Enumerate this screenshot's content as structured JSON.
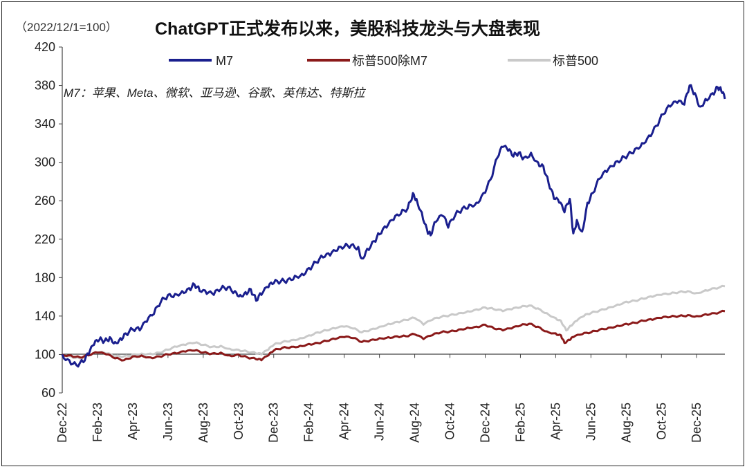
{
  "chart_data": {
    "type": "line",
    "base_note": "（2022/12/1=100）",
    "title": "ChatGPT正式发布以来，美股科技龙头与大盘表现",
    "annotation": "M7：苹果、Meta、微软、亚马逊、谷歌、英伟达、特斯拉",
    "ylim": [
      60,
      420
    ],
    "yticks": [
      "420",
      "380",
      "340",
      "300",
      "260",
      "220",
      "180",
      "140",
      "100",
      "60"
    ],
    "xlabels": [
      "Dec-22",
      "Feb-23",
      "Apr-23",
      "Jun-23",
      "Aug-23",
      "Oct-23",
      "Dec-23",
      "Feb-24",
      "Apr-24",
      "Jun-24",
      "Aug-24",
      "Oct-24",
      "Dec-24",
      "Feb-25",
      "Apr-25",
      "Jun-25",
      "Aug-25",
      "Oct-25",
      "Dec-25"
    ],
    "x_months": [
      0,
      2,
      4,
      6,
      8,
      10,
      12,
      14,
      16,
      18,
      20,
      22,
      24,
      26,
      28,
      30,
      32,
      34,
      36
    ],
    "xlim_months": [
      0,
      37.6
    ],
    "series": [
      {
        "name": "M7",
        "color": "#1a1f8e",
        "points": [
          [
            0,
            100
          ],
          [
            0.4,
            94
          ],
          [
            0.8,
            89
          ],
          [
            1.2,
            92
          ],
          [
            1.5,
            100
          ],
          [
            1.8,
            110
          ],
          [
            2.1,
            115
          ],
          [
            2.4,
            114
          ],
          [
            2.7,
            118
          ],
          [
            3.0,
            113
          ],
          [
            3.3,
            117
          ],
          [
            3.6,
            122
          ],
          [
            4.0,
            126
          ],
          [
            4.4,
            125
          ],
          [
            4.8,
            134
          ],
          [
            5.2,
            142
          ],
          [
            5.6,
            155
          ],
          [
            6.0,
            162
          ],
          [
            6.4,
            163
          ],
          [
            6.8,
            166
          ],
          [
            7.2,
            169
          ],
          [
            7.5,
            173
          ],
          [
            7.8,
            166
          ],
          [
            8.2,
            163
          ],
          [
            8.6,
            162
          ],
          [
            9.0,
            168
          ],
          [
            9.4,
            170
          ],
          [
            9.8,
            166
          ],
          [
            10.1,
            162
          ],
          [
            10.4,
            165
          ],
          [
            10.7,
            168
          ],
          [
            11.0,
            156
          ],
          [
            11.3,
            162
          ],
          [
            11.7,
            170
          ],
          [
            12.0,
            174
          ],
          [
            12.4,
            176
          ],
          [
            12.8,
            178
          ],
          [
            13.2,
            182
          ],
          [
            13.6,
            184
          ],
          [
            14.0,
            190
          ],
          [
            14.4,
            196
          ],
          [
            14.8,
            201
          ],
          [
            15.2,
            203
          ],
          [
            15.6,
            208
          ],
          [
            16.0,
            212
          ],
          [
            16.4,
            214
          ],
          [
            16.8,
            212
          ],
          [
            17.0,
            200
          ],
          [
            17.3,
            210
          ],
          [
            17.7,
            218
          ],
          [
            18.0,
            225
          ],
          [
            18.4,
            232
          ],
          [
            18.8,
            240
          ],
          [
            19.2,
            246
          ],
          [
            19.6,
            252
          ],
          [
            19.9,
            268
          ],
          [
            20.1,
            262
          ],
          [
            20.4,
            248
          ],
          [
            20.7,
            230
          ],
          [
            20.9,
            224
          ],
          [
            21.2,
            238
          ],
          [
            21.6,
            244
          ],
          [
            21.9,
            232
          ],
          [
            22.3,
            245
          ],
          [
            22.7,
            252
          ],
          [
            23.1,
            256
          ],
          [
            23.5,
            258
          ],
          [
            23.9,
            268
          ],
          [
            24.3,
            282
          ],
          [
            24.7,
            305
          ],
          [
            25.0,
            316
          ],
          [
            25.3,
            312
          ],
          [
            25.6,
            306
          ],
          [
            25.9,
            310
          ],
          [
            26.2,
            305
          ],
          [
            26.6,
            310
          ],
          [
            27.0,
            300
          ],
          [
            27.3,
            296
          ],
          [
            27.6,
            278
          ],
          [
            27.9,
            262
          ],
          [
            28.2,
            258
          ],
          [
            28.5,
            248
          ],
          [
            28.8,
            262
          ],
          [
            29.0,
            226
          ],
          [
            29.2,
            240
          ],
          [
            29.5,
            228
          ],
          [
            29.8,
            258
          ],
          [
            30.1,
            268
          ],
          [
            30.5,
            283
          ],
          [
            30.9,
            290
          ],
          [
            31.3,
            296
          ],
          [
            31.7,
            302
          ],
          [
            32.1,
            308
          ],
          [
            32.5,
            314
          ],
          [
            32.9,
            320
          ],
          [
            33.3,
            328
          ],
          [
            33.7,
            338
          ],
          [
            34.1,
            350
          ],
          [
            34.5,
            358
          ],
          [
            34.9,
            362
          ],
          [
            35.3,
            360
          ],
          [
            35.6,
            380
          ],
          [
            35.9,
            372
          ],
          [
            36.2,
            358
          ],
          [
            36.5,
            366
          ],
          [
            36.9,
            372
          ],
          [
            37.2,
            378
          ],
          [
            37.4,
            374
          ],
          [
            37.6,
            366
          ]
        ]
      },
      {
        "name": "标普500除M7",
        "color": "#8b1a1a",
        "points": [
          [
            0,
            100
          ],
          [
            0.5,
            99
          ],
          [
            1.0,
            97
          ],
          [
            1.5,
            99
          ],
          [
            2.0,
            102
          ],
          [
            2.5,
            100
          ],
          [
            3.0,
            96
          ],
          [
            3.5,
            94
          ],
          [
            4.0,
            98
          ],
          [
            4.5,
            99
          ],
          [
            5.0,
            97
          ],
          [
            5.5,
            98
          ],
          [
            6.0,
            100
          ],
          [
            6.5,
            101
          ],
          [
            7.0,
            103
          ],
          [
            7.5,
            104
          ],
          [
            8.0,
            102
          ],
          [
            8.5,
            101
          ],
          [
            9.0,
            102
          ],
          [
            9.5,
            99
          ],
          [
            10.0,
            100
          ],
          [
            10.5,
            97
          ],
          [
            11.0,
            95
          ],
          [
            11.3,
            94
          ],
          [
            11.7,
            99
          ],
          [
            12.0,
            104
          ],
          [
            12.5,
            107
          ],
          [
            13.0,
            108
          ],
          [
            13.5,
            109
          ],
          [
            14.0,
            111
          ],
          [
            14.5,
            112
          ],
          [
            15.0,
            114
          ],
          [
            15.5,
            116
          ],
          [
            16.0,
            118
          ],
          [
            16.5,
            117
          ],
          [
            17.0,
            113
          ],
          [
            17.5,
            115
          ],
          [
            18.0,
            117
          ],
          [
            18.5,
            118
          ],
          [
            19.0,
            119
          ],
          [
            19.5,
            119
          ],
          [
            20.0,
            121
          ],
          [
            20.5,
            116
          ],
          [
            21.0,
            120
          ],
          [
            21.5,
            123
          ],
          [
            22.0,
            124
          ],
          [
            22.5,
            126
          ],
          [
            23.0,
            128
          ],
          [
            23.5,
            129
          ],
          [
            24.0,
            131
          ],
          [
            24.5,
            127
          ],
          [
            25.0,
            125
          ],
          [
            25.5,
            127
          ],
          [
            26.0,
            130
          ],
          [
            26.5,
            132
          ],
          [
            27.0,
            129
          ],
          [
            27.5,
            124
          ],
          [
            28.0,
            122
          ],
          [
            28.3,
            120
          ],
          [
            28.5,
            112
          ],
          [
            28.8,
            115
          ],
          [
            29.0,
            118
          ],
          [
            29.5,
            121
          ],
          [
            30.0,
            123
          ],
          [
            30.5,
            126
          ],
          [
            31.0,
            128
          ],
          [
            31.5,
            130
          ],
          [
            32.0,
            132
          ],
          [
            32.5,
            133
          ],
          [
            33.0,
            135
          ],
          [
            33.5,
            136
          ],
          [
            34.0,
            138
          ],
          [
            34.5,
            139
          ],
          [
            35.0,
            140
          ],
          [
            35.5,
            141
          ],
          [
            36.0,
            140
          ],
          [
            36.5,
            142
          ],
          [
            37.0,
            143
          ],
          [
            37.6,
            145
          ]
        ]
      },
      {
        "name": "标普500",
        "color": "#c9c9c9",
        "points": [
          [
            0,
            100
          ],
          [
            0.5,
            98
          ],
          [
            1.0,
            96
          ],
          [
            1.5,
            99
          ],
          [
            2.0,
            102
          ],
          [
            2.5,
            101
          ],
          [
            3.0,
            98
          ],
          [
            3.5,
            98
          ],
          [
            4.0,
            100
          ],
          [
            4.5,
            101
          ],
          [
            5.0,
            101
          ],
          [
            5.5,
            102
          ],
          [
            6.0,
            105
          ],
          [
            6.5,
            108
          ],
          [
            7.0,
            110
          ],
          [
            7.5,
            112
          ],
          [
            8.0,
            110
          ],
          [
            8.5,
            108
          ],
          [
            9.0,
            109
          ],
          [
            9.5,
            106
          ],
          [
            10.0,
            105
          ],
          [
            10.5,
            103
          ],
          [
            11.0,
            101
          ],
          [
            11.3,
            100
          ],
          [
            11.7,
            105
          ],
          [
            12.0,
            110
          ],
          [
            12.5,
            113
          ],
          [
            13.0,
            115
          ],
          [
            13.5,
            117
          ],
          [
            14.0,
            120
          ],
          [
            14.5,
            123
          ],
          [
            15.0,
            125
          ],
          [
            15.5,
            127
          ],
          [
            16.0,
            129
          ],
          [
            16.5,
            127
          ],
          [
            17.0,
            123
          ],
          [
            17.5,
            126
          ],
          [
            18.0,
            129
          ],
          [
            18.5,
            132
          ],
          [
            19.0,
            134
          ],
          [
            19.5,
            136
          ],
          [
            20.0,
            138
          ],
          [
            20.5,
            131
          ],
          [
            21.0,
            136
          ],
          [
            21.5,
            139
          ],
          [
            22.0,
            141
          ],
          [
            22.5,
            143
          ],
          [
            23.0,
            145
          ],
          [
            23.5,
            147
          ],
          [
            24.0,
            149
          ],
          [
            24.5,
            147
          ],
          [
            25.0,
            145
          ],
          [
            25.5,
            147
          ],
          [
            26.0,
            149
          ],
          [
            26.5,
            151
          ],
          [
            27.0,
            148
          ],
          [
            27.5,
            143
          ],
          [
            28.0,
            138
          ],
          [
            28.3,
            135
          ],
          [
            28.6,
            125
          ],
          [
            28.9,
            130
          ],
          [
            29.2,
            135
          ],
          [
            29.6,
            140
          ],
          [
            30.0,
            143
          ],
          [
            30.5,
            146
          ],
          [
            31.0,
            149
          ],
          [
            31.5,
            152
          ],
          [
            32.0,
            155
          ],
          [
            32.5,
            156
          ],
          [
            33.0,
            158
          ],
          [
            33.5,
            160
          ],
          [
            34.0,
            162
          ],
          [
            34.5,
            163
          ],
          [
            35.0,
            165
          ],
          [
            35.5,
            166
          ],
          [
            36.0,
            164
          ],
          [
            36.5,
            167
          ],
          [
            37.0,
            169
          ],
          [
            37.6,
            171
          ]
        ]
      }
    ]
  }
}
